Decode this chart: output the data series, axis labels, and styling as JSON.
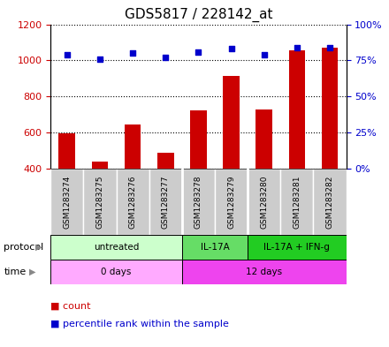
{
  "title": "GDS5817 / 228142_at",
  "samples": [
    "GSM1283274",
    "GSM1283275",
    "GSM1283276",
    "GSM1283277",
    "GSM1283278",
    "GSM1283279",
    "GSM1283280",
    "GSM1283281",
    "GSM1283282"
  ],
  "counts": [
    594,
    437,
    647,
    487,
    722,
    916,
    730,
    1058,
    1068
  ],
  "percentiles": [
    79,
    76,
    80,
    77,
    81,
    83,
    79,
    84,
    84
  ],
  "ylim_left": [
    400,
    1200
  ],
  "ylim_right": [
    0,
    100
  ],
  "yticks_left": [
    400,
    600,
    800,
    1000,
    1200
  ],
  "yticks_right": [
    0,
    25,
    50,
    75,
    100
  ],
  "bar_color": "#cc0000",
  "dot_color": "#0000cc",
  "protocol_groups": [
    {
      "label": "untreated",
      "start": 0,
      "end": 4,
      "color": "#ccffcc"
    },
    {
      "label": "IL-17A",
      "start": 4,
      "end": 6,
      "color": "#66dd66"
    },
    {
      "label": "IL-17A + IFN-g",
      "start": 6,
      "end": 9,
      "color": "#22cc22"
    }
  ],
  "time_groups": [
    {
      "label": "0 days",
      "start": 0,
      "end": 4,
      "color": "#ffaaff"
    },
    {
      "label": "12 days",
      "start": 4,
      "end": 9,
      "color": "#ee44ee"
    }
  ],
  "sample_bg_color": "#cccccc",
  "left_axis_color": "#cc0000",
  "right_axis_color": "#0000cc",
  "legend_count_color": "#cc0000",
  "legend_pct_color": "#0000cc",
  "title_fontsize": 11,
  "bar_width": 0.5,
  "dot_size": 18
}
